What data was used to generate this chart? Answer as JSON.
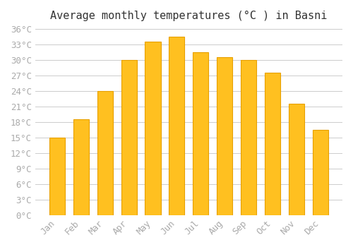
{
  "title": "Average monthly temperatures (°C ) in Basni",
  "months": [
    "Jan",
    "Feb",
    "Mar",
    "Apr",
    "May",
    "Jun",
    "Jul",
    "Aug",
    "Sep",
    "Oct",
    "Nov",
    "Dec"
  ],
  "values": [
    15,
    18.5,
    24,
    30,
    33.5,
    34.5,
    31.5,
    30.5,
    30,
    27.5,
    21.5,
    16.5
  ],
  "bar_color": "#FFC020",
  "bar_edge_color": "#E8A000",
  "background_color": "#FFFFFF",
  "grid_color": "#CCCCCC",
  "tick_label_color": "#AAAAAA",
  "ylim": [
    0,
    36
  ],
  "ytick_step": 3,
  "title_fontsize": 11,
  "tick_fontsize": 9
}
